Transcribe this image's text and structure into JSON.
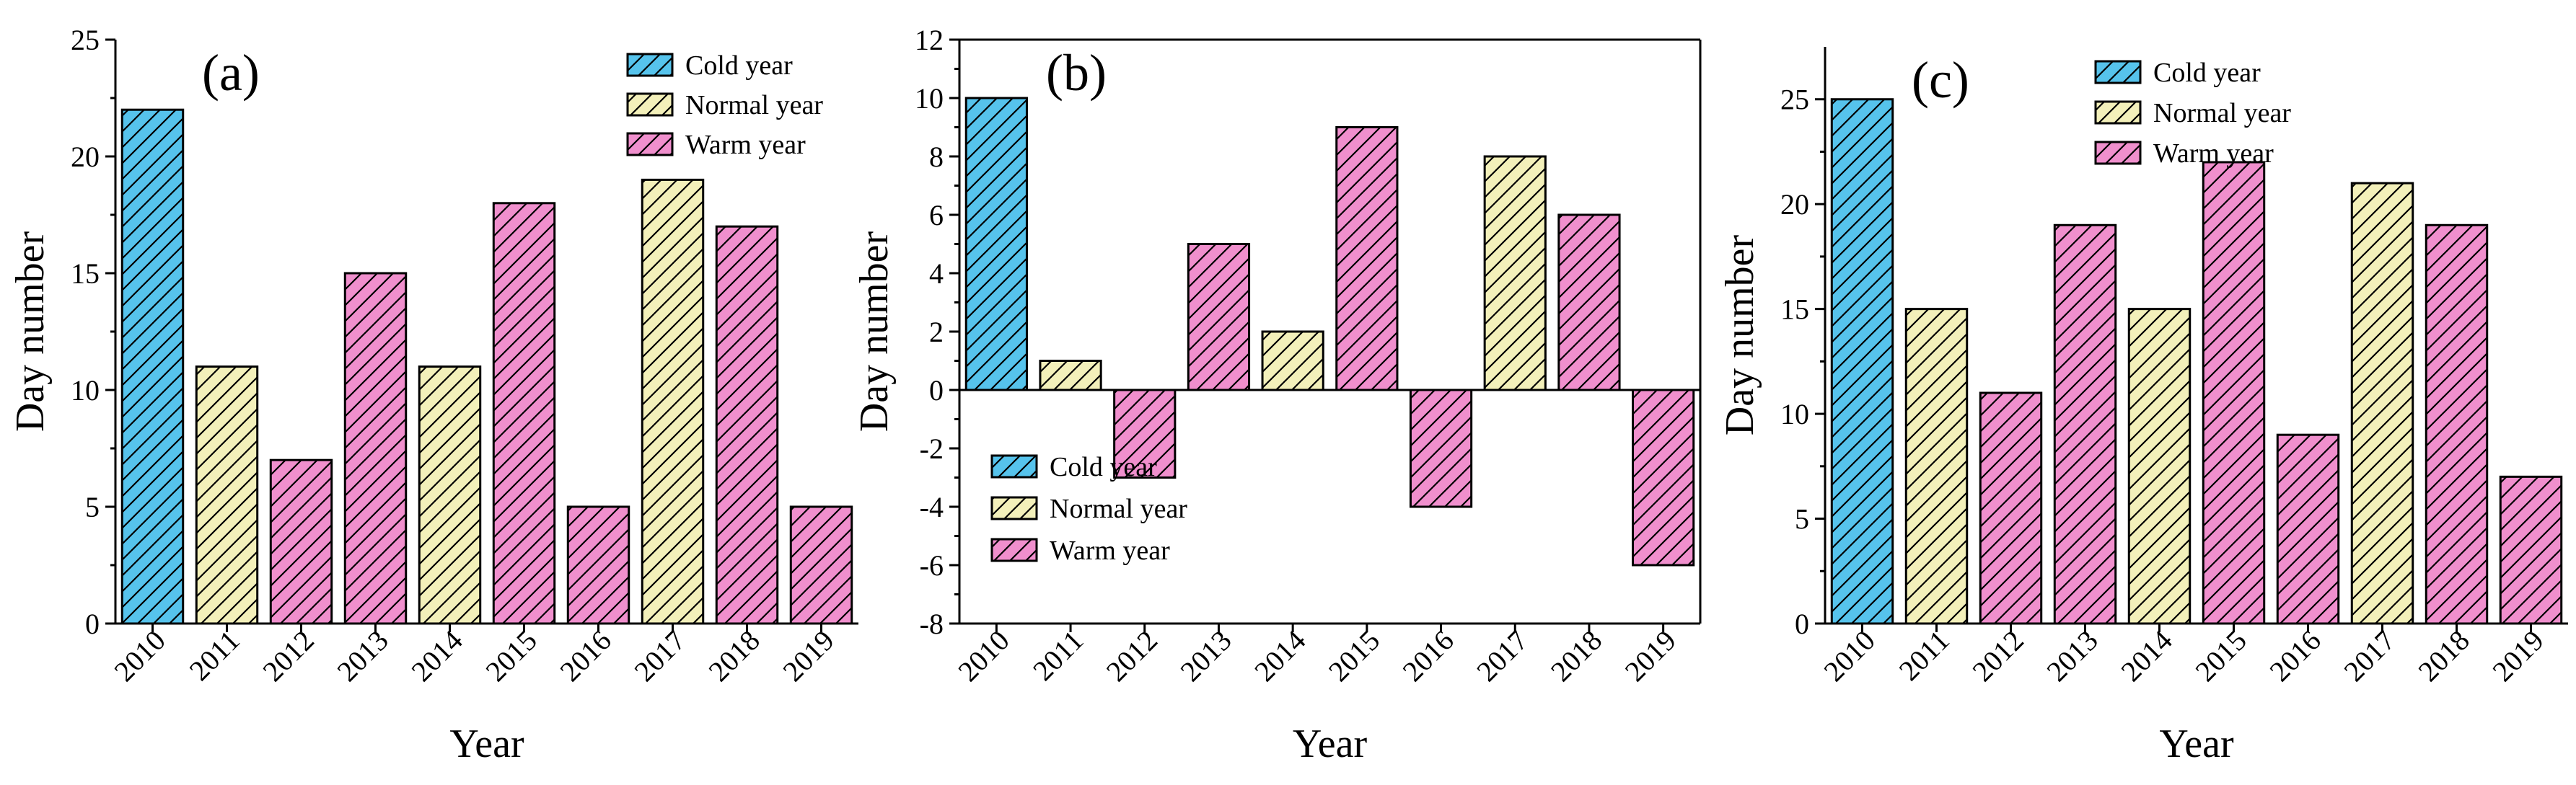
{
  "colors": {
    "cold": "#56c3ec",
    "normal": "#f3f0ba",
    "warm": "#f08fcd"
  },
  "chart_data": [
    {
      "type": "bar",
      "panel_label": "(a)",
      "xlabel": "Year",
      "ylabel": "Day number",
      "categories": [
        "2010",
        "2011",
        "2012",
        "2013",
        "2014",
        "2015",
        "2016",
        "2017",
        "2018",
        "2019"
      ],
      "values": [
        22,
        11,
        7,
        15,
        11,
        18,
        5,
        19,
        17,
        5
      ],
      "year_types": [
        "cold",
        "normal",
        "warm",
        "warm",
        "normal",
        "warm",
        "warm",
        "normal",
        "warm",
        "warm"
      ],
      "ylim": [
        0,
        25
      ],
      "yticks": [
        0,
        5,
        10,
        15,
        20,
        25
      ],
      "ytick_labels": [
        "0",
        "5",
        "10",
        "15",
        "20",
        "25"
      ],
      "legend_placement": "top-right",
      "legend": [
        {
          "key": "cold",
          "label": "Cold year"
        },
        {
          "key": "normal",
          "label": "Normal year"
        },
        {
          "key": "warm",
          "label": "Warm year"
        }
      ]
    },
    {
      "type": "bar",
      "panel_label": "(b)",
      "xlabel": "Year",
      "ylabel": "Day number",
      "categories": [
        "2010",
        "2011",
        "2012",
        "2013",
        "2014",
        "2015",
        "2016",
        "2017",
        "2018",
        "2019"
      ],
      "values": [
        10,
        1,
        -3,
        5,
        2,
        9,
        -4,
        8,
        6,
        -6
      ],
      "year_types": [
        "cold",
        "normal",
        "warm",
        "warm",
        "normal",
        "warm",
        "warm",
        "normal",
        "warm",
        "warm"
      ],
      "ylim": [
        -8,
        12
      ],
      "yticks": [
        -8,
        -6,
        -4,
        -2,
        0,
        2,
        4,
        6,
        8,
        10,
        12
      ],
      "ytick_labels": [
        "-8",
        "-6",
        "-4",
        "-2",
        "0",
        "2",
        "4",
        "6",
        "8",
        "10",
        "12"
      ],
      "legend_placement": "bottom-left",
      "legend": [
        {
          "key": "cold",
          "label": "Cold year"
        },
        {
          "key": "normal",
          "label": "Normal year"
        },
        {
          "key": "warm",
          "label": "Warm year"
        }
      ]
    },
    {
      "type": "bar",
      "panel_label": "(c)",
      "xlabel": "Year",
      "ylabel": "Day number",
      "categories": [
        "2010",
        "2011",
        "2012",
        "2013",
        "2014",
        "2015",
        "2016",
        "2017",
        "2018",
        "2019"
      ],
      "values": [
        25,
        15,
        11,
        19,
        15,
        22,
        9,
        21,
        19,
        7
      ],
      "year_types": [
        "cold",
        "normal",
        "warm",
        "warm",
        "normal",
        "warm",
        "warm",
        "normal",
        "warm",
        "warm"
      ],
      "ylim": [
        0,
        27.5
      ],
      "yticks": [
        0,
        5,
        10,
        15,
        20,
        25
      ],
      "ytick_labels": [
        "0",
        "5",
        "10",
        "15",
        "20",
        "25"
      ],
      "legend_placement": "top-right",
      "legend": [
        {
          "key": "cold",
          "label": "Cold year"
        },
        {
          "key": "normal",
          "label": "Normal year"
        },
        {
          "key": "warm",
          "label": "Warm year"
        }
      ]
    }
  ]
}
